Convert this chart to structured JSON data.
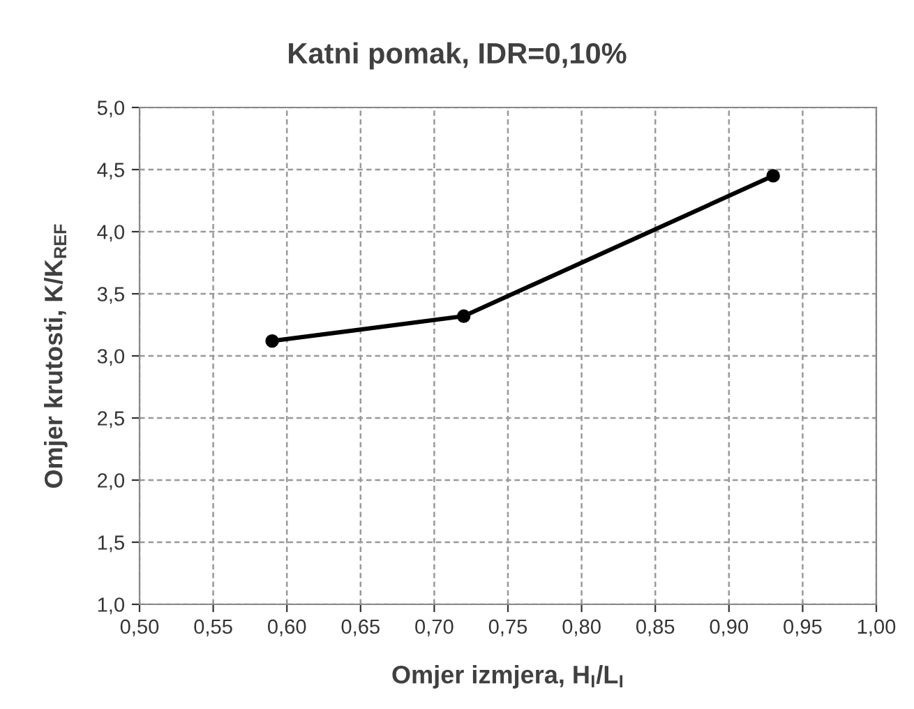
{
  "chart_data": {
    "type": "line",
    "title": "Katni pomak, IDR=0,10%",
    "xlabel": "Omjer izmjera, H$_{I}$/L$_{I}$",
    "ylabel": "Omjer krutosti, K/K$_{REF}$",
    "x": [
      0.59,
      0.72,
      0.93
    ],
    "series": [
      {
        "color": "#000000",
        "values": [
          3.12,
          3.32,
          4.45
        ]
      }
    ],
    "marker": "circle",
    "line_style": "solid",
    "grid": true,
    "xlim": [
      0.5,
      1.0
    ],
    "xticks": [
      {
        "value": 0.5,
        "label": "0,50"
      },
      {
        "value": 0.55,
        "label": "0,55"
      },
      {
        "value": 0.6,
        "label": "0,60"
      },
      {
        "value": 0.65,
        "label": "0,65"
      },
      {
        "value": 0.7,
        "label": "0,70"
      },
      {
        "value": 0.75,
        "label": "0,75"
      },
      {
        "value": 0.8,
        "label": "0,80"
      },
      {
        "value": 0.85,
        "label": "0,85"
      },
      {
        "value": 0.9,
        "label": "0,90"
      },
      {
        "value": 0.95,
        "label": "0,95"
      },
      {
        "value": 1.0,
        "label": "1,00"
      }
    ],
    "ylim": [
      1.0,
      5.0
    ],
    "yticks": [
      {
        "value": 1.0,
        "label": "1,0"
      },
      {
        "value": 1.5,
        "label": "1,5"
      },
      {
        "value": 2.0,
        "label": "2,0"
      },
      {
        "value": 2.5,
        "label": "2,5"
      },
      {
        "value": 3.0,
        "label": "3,0"
      },
      {
        "value": 3.5,
        "label": "3,5"
      },
      {
        "value": 4.0,
        "label": "4,0"
      },
      {
        "value": 4.5,
        "label": "4,5"
      },
      {
        "value": 5.0,
        "label": "5,0"
      }
    ]
  }
}
